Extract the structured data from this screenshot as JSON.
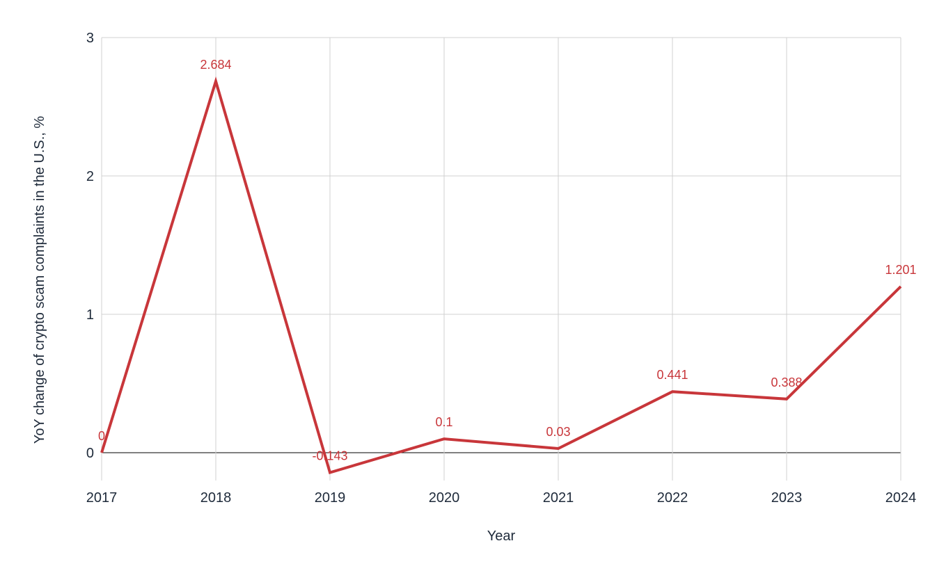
{
  "chart_data": {
    "type": "line",
    "title": "",
    "xlabel": "Year",
    "ylabel": "YoY change of crypto scam complaints in the U.S., %",
    "categories": [
      "2017",
      "2018",
      "2019",
      "2020",
      "2021",
      "2022",
      "2023",
      "2024"
    ],
    "series": [
      {
        "values": [
          0,
          2.684,
          -0.143,
          0.1,
          0.03,
          0.441,
          0.388,
          1.201
        ],
        "labels": [
          "0",
          "2.684",
          "-0.143",
          "0.1",
          "0.03",
          "0.441",
          "0.388",
          "1.201"
        ],
        "color": "#c8363a"
      }
    ],
    "ylim": [
      -0.15,
      3
    ],
    "yticks": [
      0,
      1,
      2,
      3
    ],
    "ytick_labels": [
      "0",
      "1",
      "2",
      "3"
    ],
    "grid": true,
    "legend": false
  },
  "colors": {
    "series": "#c8363a",
    "grid": "#d0d0d0",
    "text": "#1e2a3a"
  }
}
